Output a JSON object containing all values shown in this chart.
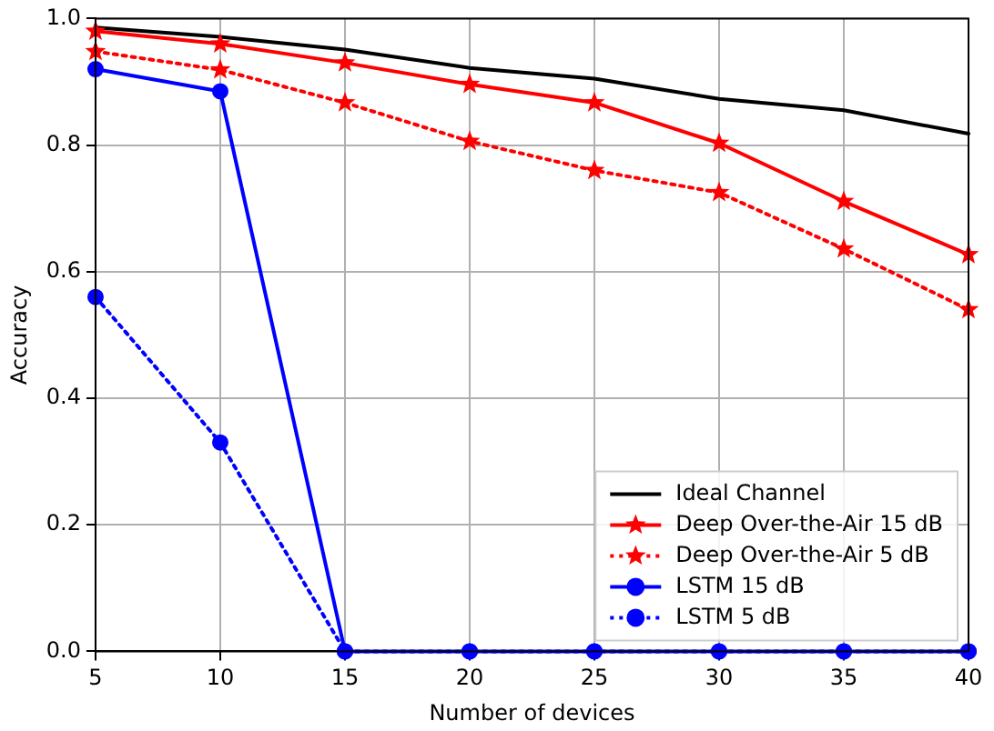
{
  "chart_data": {
    "type": "line",
    "xlabel": "Number of devices",
    "ylabel": "Accuracy",
    "x": [
      5,
      10,
      15,
      20,
      25,
      30,
      35,
      40
    ],
    "xlim": [
      5,
      40
    ],
    "xticks": [
      5,
      10,
      15,
      20,
      25,
      30,
      35,
      40
    ],
    "ylim": [
      0,
      1
    ],
    "yticks": [
      {
        "value": 0,
        "label": "0.0"
      },
      0.2,
      0.4,
      0.6,
      0.8,
      {
        "value": 1,
        "label": "1.0"
      }
    ],
    "grid": true,
    "legend": "bottom right",
    "series": [
      {
        "name": "Ideal Channel",
        "color": "#000000",
        "marker": "none",
        "line_style": "solid",
        "values": [
          0.986,
          0.971,
          0.951,
          0.922,
          0.905,
          0.873,
          0.855,
          0.818
        ]
      },
      {
        "name": "Deep Over-the-Air 15 dB",
        "color": "#ff0000",
        "marker": "star",
        "line_style": "solid",
        "values": [
          0.98,
          0.96,
          0.93,
          0.896,
          0.867,
          0.803,
          0.711,
          0.627
        ]
      },
      {
        "name": "Deep Over-the-Air 5 dB",
        "color": "#ff0000",
        "marker": "star",
        "line_style": "dotted",
        "values": [
          0.948,
          0.919,
          0.867,
          0.806,
          0.76,
          0.725,
          0.636,
          0.54
        ]
      },
      {
        "name": "LSTM 15 dB",
        "color": "#0000ff",
        "marker": "circle",
        "line_style": "solid",
        "values": [
          0.92,
          0.885,
          0,
          0,
          0,
          0,
          0,
          0
        ]
      },
      {
        "name": "LSTM 5 dB",
        "color": "#0000ff",
        "marker": "circle",
        "line_style": "dotted",
        "values": [
          0.56,
          0.33,
          0,
          0,
          0,
          0,
          0,
          0
        ]
      }
    ]
  }
}
